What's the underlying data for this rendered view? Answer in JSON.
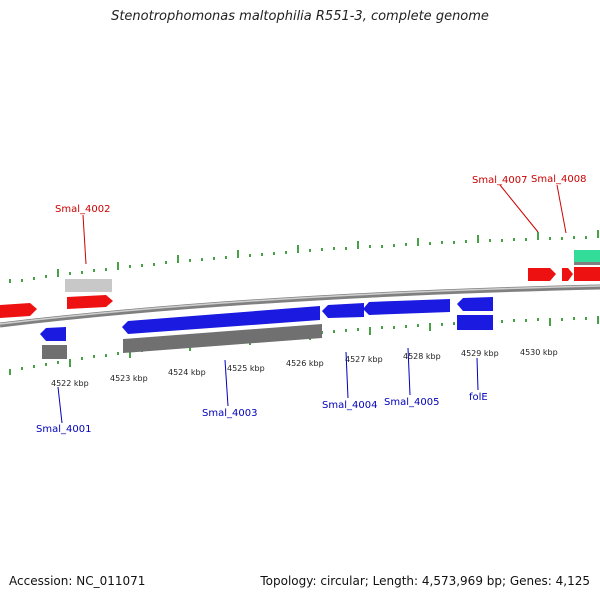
{
  "title": "Stenotrophomonas maltophilia R551-3, complete genome",
  "footer": {
    "accession": "Accession: NC_011071",
    "summary": "Topology: circular; Length: 4,573,969 bp; Genes: 4,125"
  },
  "colors": {
    "forward_cds": "#ee1111",
    "reverse_cds": "#1a1ae0",
    "gene_reverse": "#707070",
    "gene_forward": "#c8c8c8",
    "green_feature": "#33dd99",
    "backbone": "#909090",
    "tick": "#1a8a1a",
    "forward_label": "#cc0000",
    "reverse_label": "#0000bb"
  },
  "scale_labels": [
    "4522 kbp",
    "4523 kbp",
    "4524 kbp",
    "4525 kbp",
    "4526 kbp",
    "4527 kbp",
    "4528 kbp",
    "4529 kbp",
    "4530 kbp"
  ],
  "gene_labels": {
    "forward": [
      "Smal_4002",
      "Smal_4007",
      "Smal_4008"
    ],
    "reverse": [
      "Smal_4001",
      "Smal_4003",
      "Smal_4004",
      "Smal_4005",
      "folE"
    ]
  }
}
